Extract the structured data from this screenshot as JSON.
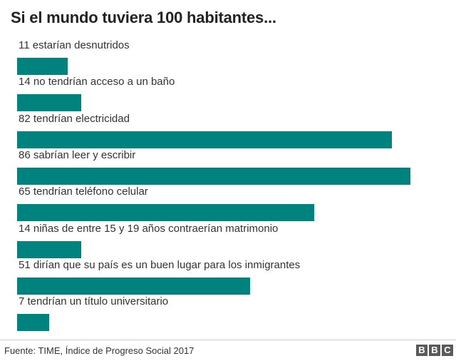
{
  "chart_data": {
    "type": "bar",
    "orientation": "horizontal",
    "title": "Si el mundo tuviera 100 habitantes...",
    "xlim": [
      0,
      100
    ],
    "grid": false,
    "bar_color": "#00827f",
    "categories": [
      "11 estarían desnutridos",
      "14 no tendrían acceso a un baño",
      "82 tendrían electricidad",
      "86 sabrían leer y escribir",
      "65 tendrían teléfono celular",
      "14 niñas de entre 15 y 19 años contraerían matrimonio",
      "51 dirían que su país es un buen lugar para los inmigrantes",
      "7 tendrían un título universitario"
    ],
    "values": [
      11,
      14,
      82,
      86,
      65,
      14,
      51,
      7
    ]
  },
  "footer": {
    "source": "Fuente: TIME, Índice de Progreso Social 2017",
    "logo_letters": [
      "B",
      "B",
      "C"
    ]
  }
}
